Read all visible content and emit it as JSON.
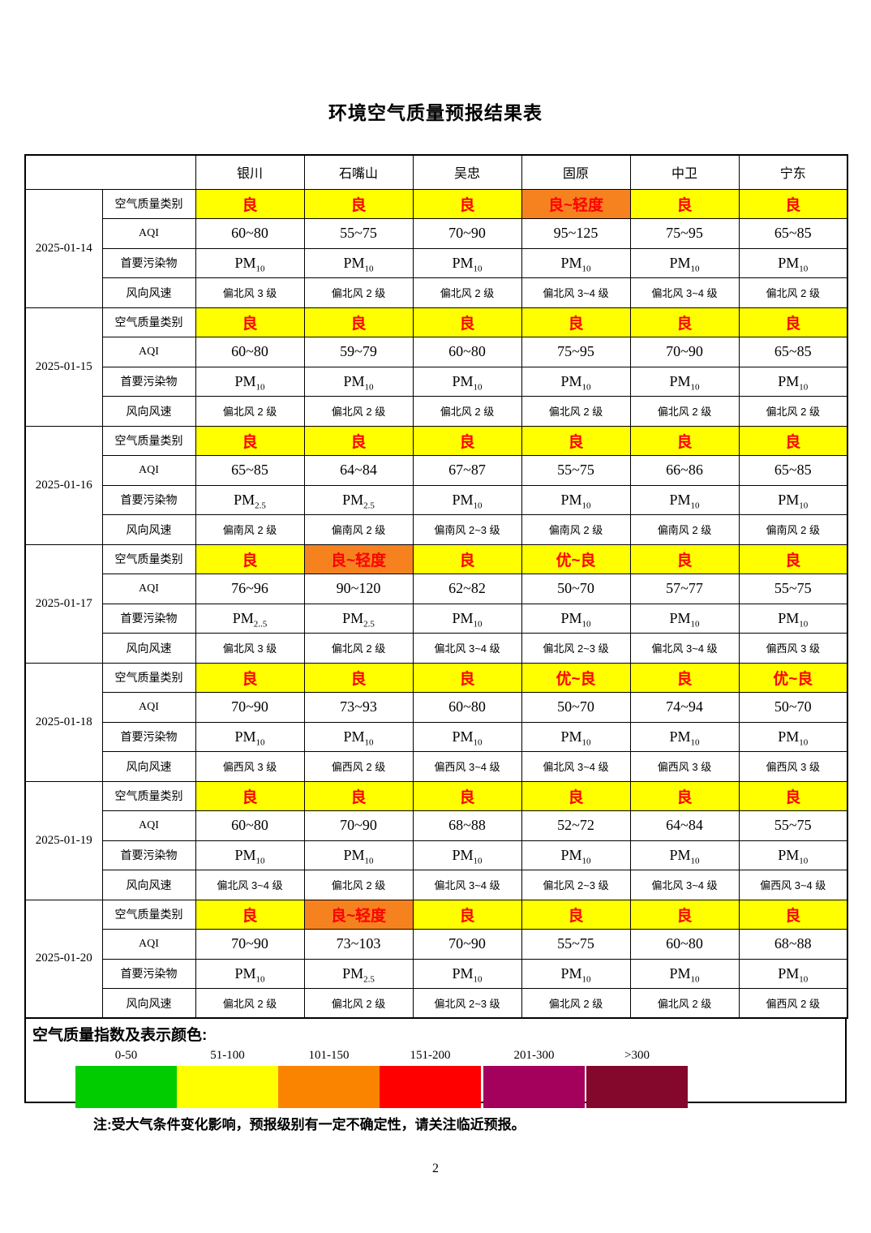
{
  "document": {
    "title": "环境空气质量预报结果表",
    "note": "注:受大气条件变化影响，预报级别有一定不确定性，请关注临近预报。",
    "page_number": "2"
  },
  "table": {
    "cities": [
      "银川",
      "石嘴山",
      "吴忠",
      "固原",
      "中卫",
      "宁东"
    ],
    "row_labels": {
      "category": "空气质量类别",
      "aqi": "AQI",
      "pollutant": "首要污染物",
      "wind": "风向风速"
    },
    "category_colors": {
      "yellow": "#FFFF00",
      "orange": "#F5821F",
      "text": "#FF0000"
    },
    "days": [
      {
        "date": "2025-01-14",
        "category": [
          {
            "text": "良",
            "cls": "yellow"
          },
          {
            "text": "良",
            "cls": "yellow"
          },
          {
            "text": "良",
            "cls": "yellow"
          },
          {
            "text": "良~轻度",
            "cls": "orange"
          },
          {
            "text": "良",
            "cls": "yellow"
          },
          {
            "text": "良",
            "cls": "yellow"
          }
        ],
        "aqi": [
          "60~80",
          "55~75",
          "70~90",
          "95~125",
          "75~95",
          "65~85"
        ],
        "pollutant": [
          {
            "base": "PM",
            "sub": "10"
          },
          {
            "base": "PM",
            "sub": "10"
          },
          {
            "base": "PM",
            "sub": "10"
          },
          {
            "base": "PM",
            "sub": "10"
          },
          {
            "base": "PM",
            "sub": "10"
          },
          {
            "base": "PM",
            "sub": "10"
          }
        ],
        "wind": [
          "偏北风 3 级",
          "偏北风 2 级",
          "偏北风 2 级",
          "偏北风 3~4 级",
          "偏北风 3~4 级",
          "偏北风 2 级"
        ]
      },
      {
        "date": "2025-01-15",
        "category": [
          {
            "text": "良",
            "cls": "yellow"
          },
          {
            "text": "良",
            "cls": "yellow"
          },
          {
            "text": "良",
            "cls": "yellow"
          },
          {
            "text": "良",
            "cls": "yellow"
          },
          {
            "text": "良",
            "cls": "yellow"
          },
          {
            "text": "良",
            "cls": "yellow"
          }
        ],
        "aqi": [
          "60~80",
          "59~79",
          "60~80",
          "75~95",
          "70~90",
          "65~85"
        ],
        "pollutant": [
          {
            "base": "PM",
            "sub": "10"
          },
          {
            "base": "PM",
            "sub": "10"
          },
          {
            "base": "PM",
            "sub": "10"
          },
          {
            "base": "PM",
            "sub": "10"
          },
          {
            "base": "PM",
            "sub": "10"
          },
          {
            "base": "PM",
            "sub": "10"
          }
        ],
        "wind": [
          "偏北风 2 级",
          "偏北风 2 级",
          "偏北风 2 级",
          "偏北风 2 级",
          "偏北风 2 级",
          "偏北风 2 级"
        ]
      },
      {
        "date": "2025-01-16",
        "category": [
          {
            "text": "良",
            "cls": "yellow"
          },
          {
            "text": "良",
            "cls": "yellow"
          },
          {
            "text": "良",
            "cls": "yellow"
          },
          {
            "text": "良",
            "cls": "yellow"
          },
          {
            "text": "良",
            "cls": "yellow"
          },
          {
            "text": "良",
            "cls": "yellow"
          }
        ],
        "aqi": [
          "65~85",
          "64~84",
          "67~87",
          "55~75",
          "66~86",
          "65~85"
        ],
        "pollutant": [
          {
            "base": "PM",
            "sub": "2.5"
          },
          {
            "base": "PM",
            "sub": "2.5"
          },
          {
            "base": "PM",
            "sub": "10"
          },
          {
            "base": "PM",
            "sub": "10"
          },
          {
            "base": "PM",
            "sub": "10"
          },
          {
            "base": "PM",
            "sub": "10"
          }
        ],
        "wind": [
          "偏南风 2 级",
          "偏南风 2 级",
          "偏南风 2~3 级",
          "偏南风 2 级",
          "偏南风 2 级",
          "偏南风 2 级"
        ]
      },
      {
        "date": "2025-01-17",
        "category": [
          {
            "text": "良",
            "cls": "yellow"
          },
          {
            "text": "良~轻度",
            "cls": "orange"
          },
          {
            "text": "良",
            "cls": "yellow"
          },
          {
            "text": "优~良",
            "cls": "yellow"
          },
          {
            "text": "良",
            "cls": "yellow"
          },
          {
            "text": "良",
            "cls": "yellow"
          }
        ],
        "aqi": [
          "76~96",
          "90~120",
          "62~82",
          "50~70",
          "57~77",
          "55~75"
        ],
        "pollutant": [
          {
            "base": "PM",
            "sub": "2..5"
          },
          {
            "base": "PM",
            "sub": "2.5"
          },
          {
            "base": "PM",
            "sub": "10"
          },
          {
            "base": "PM",
            "sub": "10"
          },
          {
            "base": "PM",
            "sub": "10"
          },
          {
            "base": "PM",
            "sub": "10"
          }
        ],
        "wind": [
          "偏北风 3 级",
          "偏北风 2 级",
          "偏北风 3~4 级",
          "偏北风 2~3 级",
          "偏北风 3~4 级",
          "偏西风 3 级"
        ]
      },
      {
        "date": "2025-01-18",
        "category": [
          {
            "text": "良",
            "cls": "yellow"
          },
          {
            "text": "良",
            "cls": "yellow"
          },
          {
            "text": "良",
            "cls": "yellow"
          },
          {
            "text": "优~良",
            "cls": "yellow"
          },
          {
            "text": "良",
            "cls": "yellow"
          },
          {
            "text": "优~良",
            "cls": "yellow"
          }
        ],
        "aqi": [
          "70~90",
          "73~93",
          "60~80",
          "50~70",
          "74~94",
          "50~70"
        ],
        "pollutant": [
          {
            "base": "PM",
            "sub": "10"
          },
          {
            "base": "PM",
            "sub": "10"
          },
          {
            "base": "PM",
            "sub": "10"
          },
          {
            "base": "PM",
            "sub": "10"
          },
          {
            "base": "PM",
            "sub": "10"
          },
          {
            "base": "PM",
            "sub": "10"
          }
        ],
        "wind": [
          "偏西风 3 级",
          "偏西风 2 级",
          "偏西风 3~4 级",
          "偏北风 3~4 级",
          "偏西风 3 级",
          "偏西风 3 级"
        ]
      },
      {
        "date": "2025-01-19",
        "category": [
          {
            "text": "良",
            "cls": "yellow"
          },
          {
            "text": "良",
            "cls": "yellow"
          },
          {
            "text": "良",
            "cls": "yellow"
          },
          {
            "text": "良",
            "cls": "yellow"
          },
          {
            "text": "良",
            "cls": "yellow"
          },
          {
            "text": "良",
            "cls": "yellow"
          }
        ],
        "aqi": [
          "60~80",
          "70~90",
          "68~88",
          "52~72",
          "64~84",
          "55~75"
        ],
        "pollutant": [
          {
            "base": "PM",
            "sub": "10"
          },
          {
            "base": "PM",
            "sub": "10"
          },
          {
            "base": "PM",
            "sub": "10"
          },
          {
            "base": "PM",
            "sub": "10"
          },
          {
            "base": "PM",
            "sub": "10"
          },
          {
            "base": "PM",
            "sub": "10"
          }
        ],
        "wind": [
          "偏北风 3~4 级",
          "偏北风 2 级",
          "偏北风 3~4 级",
          "偏北风 2~3 级",
          "偏北风 3~4 级",
          "偏西风 3~4 级"
        ]
      },
      {
        "date": "2025-01-20",
        "category": [
          {
            "text": "良",
            "cls": "yellow"
          },
          {
            "text": "良~轻度",
            "cls": "orange"
          },
          {
            "text": "良",
            "cls": "yellow"
          },
          {
            "text": "良",
            "cls": "yellow"
          },
          {
            "text": "良",
            "cls": "yellow"
          },
          {
            "text": "良",
            "cls": "yellow"
          }
        ],
        "aqi": [
          "70~90",
          "73~103",
          "70~90",
          "55~75",
          "60~80",
          "68~88"
        ],
        "pollutant": [
          {
            "base": "PM",
            "sub": "10"
          },
          {
            "base": "PM",
            "sub": "2.5"
          },
          {
            "base": "PM",
            "sub": "10"
          },
          {
            "base": "PM",
            "sub": "10"
          },
          {
            "base": "PM",
            "sub": "10"
          },
          {
            "base": "PM",
            "sub": "10"
          }
        ],
        "wind": [
          "偏北风 2 级",
          "偏北风 2 级",
          "偏北风 2~3 级",
          "偏北风 2 级",
          "偏北风 2 级",
          "偏西风 2 级"
        ]
      }
    ]
  },
  "legend": {
    "title": "空气质量指数及表示颜色:",
    "items": [
      {
        "range": "0-50",
        "color": "#00CC00"
      },
      {
        "range": "51-100",
        "color": "#FFFF00"
      },
      {
        "range": "101-150",
        "color": "#FA8300"
      },
      {
        "range": "151-200",
        "color": "#FF0000"
      },
      {
        "range": "201-300",
        "color": "#A3015C"
      },
      {
        "range": ">300",
        "color": "#84082C"
      }
    ]
  }
}
